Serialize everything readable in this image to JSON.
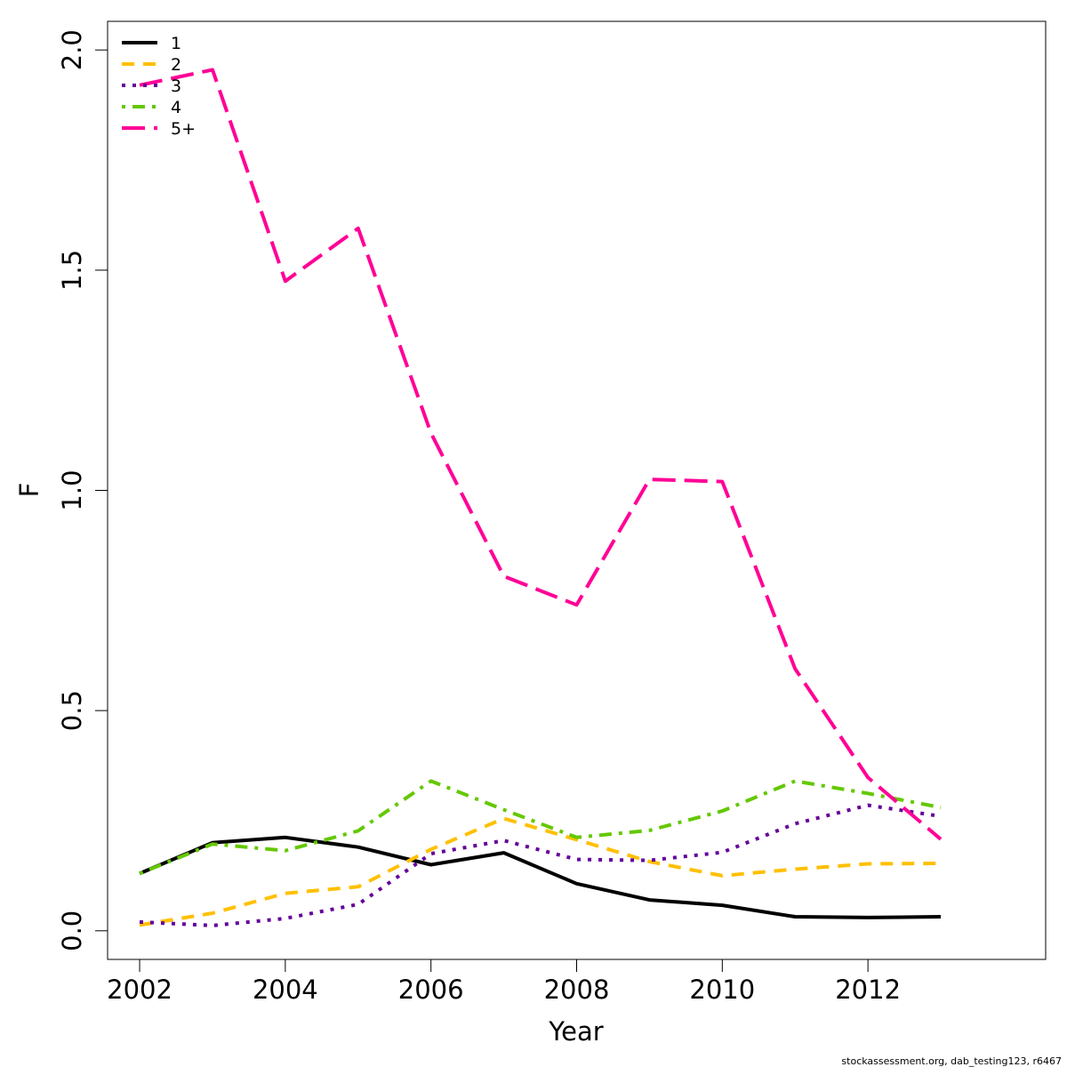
{
  "chart_data": {
    "type": "line",
    "title": "",
    "xlabel": "Year",
    "ylabel": "F",
    "xlim": [
      2001.56,
      2014.44
    ],
    "ylim": [
      -0.065,
      2.065
    ],
    "x_ticks": [
      2002,
      2004,
      2006,
      2008,
      2010,
      2012
    ],
    "y_ticks": [
      "0.0",
      "0.5",
      "1.0",
      "1.5",
      "2.0"
    ],
    "grid": false,
    "legend_position": "top-left",
    "x": [
      2002,
      2003,
      2004,
      2005,
      2006,
      2007,
      2008,
      2009,
      2010,
      2011,
      2012,
      2013
    ],
    "series": [
      {
        "name": "1",
        "color": "#000000",
        "line_style": "solid",
        "values": [
          0.13,
          0.2,
          0.212,
          0.19,
          0.15,
          0.177,
          0.107,
          0.07,
          0.058,
          0.032,
          0.03,
          0.032
        ]
      },
      {
        "name": "2",
        "color": "#ffc000",
        "line_style": "dashed",
        "values": [
          0.013,
          0.04,
          0.085,
          0.1,
          0.185,
          0.255,
          0.207,
          0.157,
          0.125,
          0.14,
          0.152,
          0.153
        ]
      },
      {
        "name": "3",
        "color": "#650099",
        "line_style": "dotted",
        "values": [
          0.02,
          0.012,
          0.028,
          0.06,
          0.175,
          0.205,
          0.162,
          0.16,
          0.178,
          0.243,
          0.285,
          0.26
        ]
      },
      {
        "name": "4",
        "color": "#64c800",
        "line_style": "dot-dash",
        "values": [
          0.13,
          0.197,
          0.182,
          0.227,
          0.34,
          0.275,
          0.212,
          0.228,
          0.272,
          0.34,
          0.312,
          0.28
        ]
      },
      {
        "name": "5+",
        "color": "#ff0096",
        "line_style": "long-dash",
        "values": [
          1.92,
          1.955,
          1.475,
          1.595,
          1.13,
          0.805,
          0.74,
          1.025,
          1.02,
          0.595,
          0.348,
          0.208
        ]
      }
    ]
  },
  "footer_text": "stockassessment.org, dab_testing123, r6467"
}
